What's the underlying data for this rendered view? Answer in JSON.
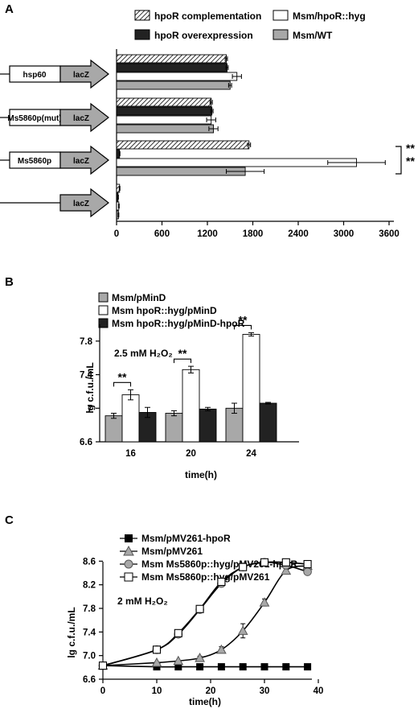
{
  "panels": {
    "a": {
      "label": "A"
    },
    "b": {
      "label": "B"
    },
    "c": {
      "label": "C"
    }
  },
  "chart_data": [
    {
      "type": "bar",
      "orientation": "horizontal",
      "categories": [
        "hsp60",
        "Ms5860p(mut)",
        "Ms5860p",
        ""
      ],
      "constructs": [
        {
          "promoter": "hsp60",
          "reporter": "lacZ"
        },
        {
          "promoter": "Ms5860p(mut)",
          "reporter": "lacZ"
        },
        {
          "promoter": "Ms5860p",
          "reporter": "lacZ"
        },
        {
          "promoter": "",
          "reporter": "lacZ"
        }
      ],
      "series": [
        {
          "name": "hpoR complementation",
          "values": [
            1450,
            1250,
            1750,
            40
          ],
          "errors": [
            15,
            15,
            20,
            5
          ]
        },
        {
          "name": "hpoR overexpression",
          "values": [
            1460,
            1260,
            40,
            20
          ],
          "errors": [
            15,
            15,
            5,
            5
          ]
        },
        {
          "name": "Msm/hpoR::hyg",
          "values": [
            1590,
            1250,
            3170,
            30
          ],
          "errors": [
            60,
            60,
            380,
            5
          ]
        },
        {
          "name": "Msm/WT",
          "values": [
            1500,
            1280,
            1700,
            25
          ],
          "errors": [
            20,
            60,
            250,
            5
          ]
        }
      ],
      "xticks": [
        "0",
        "600",
        "1200",
        "1800",
        "2400",
        "3000",
        "3600"
      ],
      "xlim": [
        0,
        3600
      ],
      "grid": false,
      "legend": "top",
      "significance": "**"
    },
    {
      "type": "bar",
      "categories": [
        "16",
        "20",
        "24"
      ],
      "series": [
        {
          "name": "Msm/pMinD",
          "values": [
            6.91,
            6.94,
            7.0
          ],
          "errors": [
            0.03,
            0.03,
            0.06
          ]
        },
        {
          "name": "Msm hpoR::hyg/pMinD",
          "values": [
            7.16,
            7.46,
            7.88
          ],
          "errors": [
            0.06,
            0.04,
            0.02
          ]
        },
        {
          "name": "Msm hpoR::hyg/pMinD-hpoR",
          "values": [
            6.95,
            6.99,
            7.06
          ],
          "errors": [
            0.06,
            0.02,
            0.01
          ]
        }
      ],
      "xlabel": "time(h)",
      "ylabel": "lg c.f.u./mL",
      "yticks": [
        "6.6",
        "7",
        "7.4",
        "7.8"
      ],
      "ylim": [
        6.6,
        8.0
      ],
      "annotation": "2.5 mM H₂O₂",
      "significance": "**",
      "legend": "top",
      "grid": false
    },
    {
      "type": "line",
      "x": [
        0,
        10,
        14,
        18,
        22,
        26,
        30,
        34,
        38
      ],
      "series": [
        {
          "name": "Msm/pMV261-hpoR",
          "marker": "filled-square",
          "values": [
            6.83,
            6.81,
            6.81,
            6.81,
            6.81,
            6.81,
            6.81,
            6.81,
            6.81
          ],
          "errors": [
            0.01,
            0.01,
            0.01,
            0.01,
            0.01,
            0.01,
            0.01,
            0.01,
            0.01
          ]
        },
        {
          "name": "Msm/pMV261",
          "marker": "gray-triangle",
          "values": [
            6.83,
            6.88,
            6.91,
            6.96,
            7.1,
            7.42,
            7.9,
            8.44,
            8.52
          ],
          "errors": [
            0.01,
            0.02,
            0.02,
            0.03,
            0.05,
            0.12,
            0.06,
            0.04,
            0.02
          ]
        },
        {
          "name": "Msm Ms5860p::hyg/pMV261-hpoR",
          "marker": "gray-circle",
          "values": [
            6.83,
            7.1,
            7.36,
            7.78,
            8.22,
            8.5,
            8.58,
            8.53,
            8.42
          ],
          "errors": [
            0.01,
            0.02,
            0.03,
            0.03,
            0.05,
            0.05,
            0.02,
            0.02,
            0.02
          ]
        },
        {
          "name": "Msm Ms5860p::hyg/pMV261",
          "marker": "open-square",
          "values": [
            6.83,
            7.1,
            7.38,
            7.79,
            8.25,
            8.5,
            8.58,
            8.58,
            8.55
          ],
          "errors": [
            0.01,
            0.02,
            0.03,
            0.03,
            0.04,
            0.04,
            0.02,
            0.02,
            0.02
          ]
        }
      ],
      "xlabel": "time(h)",
      "ylabel": "lg c.f.u./mL",
      "xticks": [
        "0",
        "10",
        "20",
        "30",
        "40"
      ],
      "yticks": [
        "6.6",
        "7.0",
        "7.4",
        "7.8",
        "8.2",
        "8.6"
      ],
      "xlim": [
        0,
        40
      ],
      "ylim": [
        6.6,
        8.7
      ],
      "annotation": "2 mM H₂O₂",
      "legend": "top",
      "grid": false
    }
  ]
}
